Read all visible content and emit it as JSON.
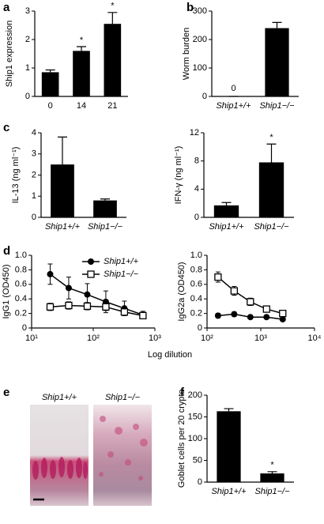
{
  "panel_letters": [
    "a",
    "b",
    "c",
    "d",
    "e",
    "f"
  ],
  "panel_e": {
    "labels": [
      "Ship1+/+",
      "Ship1−/−"
    ]
  },
  "chart_data": [
    {
      "type": "bar",
      "ylabel": "Ship1 expression",
      "categories": [
        "0",
        "14",
        "21"
      ],
      "values": [
        0.85,
        1.6,
        2.55
      ],
      "errors": [
        0.08,
        0.15,
        0.4
      ],
      "color": "#000000",
      "ylim": [
        0,
        3
      ],
      "yticks": [
        0,
        1,
        2,
        3
      ],
      "annotations": [
        {
          "category": "14",
          "text": "*"
        },
        {
          "category": "21",
          "text": "*"
        }
      ]
    },
    {
      "type": "bar",
      "ylabel": "Worm burden",
      "categories": [
        "Ship1+/+",
        "Ship1−/−"
      ],
      "values": [
        0,
        240
      ],
      "errors": [
        0,
        20
      ],
      "value_labels": [
        "0",
        null
      ],
      "color": "#000000",
      "ylim": [
        0,
        300
      ],
      "yticks": [
        0,
        100,
        200,
        300
      ]
    },
    {
      "type": "bar",
      "ylabel": "IL-13 (ng ml⁻¹)",
      "categories": [
        "Ship1+/+",
        "Ship1−/−"
      ],
      "values": [
        2.5,
        0.8
      ],
      "errors": [
        1.3,
        0.07
      ],
      "color": "#000000",
      "ylim": [
        0,
        4
      ],
      "yticks": [
        0,
        1,
        2,
        3,
        4
      ]
    },
    {
      "type": "bar",
      "ylabel": "IFN-γ (ng ml⁻¹)",
      "categories": [
        "Ship1+/+",
        "Ship1−/−"
      ],
      "values": [
        1.7,
        7.8
      ],
      "errors": [
        0.4,
        2.6
      ],
      "color": "#000000",
      "ylim": [
        0,
        12
      ],
      "yticks": [
        0,
        4,
        8,
        12
      ],
      "annotations": [
        {
          "category": "Ship1−/−",
          "text": "*"
        }
      ]
    },
    {
      "type": "line",
      "ylabel": "IgG1 (OD450)",
      "x": [
        20,
        40,
        80,
        160,
        320,
        640
      ],
      "log_x": true,
      "xlim": [
        10,
        1000
      ],
      "xticks": [
        {
          "value": 10,
          "label": "10¹"
        },
        {
          "value": 100,
          "label": "10²"
        },
        {
          "value": 1000,
          "label": "10³"
        }
      ],
      "ylim": [
        0,
        1
      ],
      "yticks": [
        0,
        0.2,
        0.4,
        0.6,
        0.8,
        {
          "value": 1,
          "label": "1.0"
        }
      ],
      "legend": "upper right",
      "series": [
        {
          "name": "Ship1+/+",
          "color": "#000000",
          "marker": "filled-circle",
          "values": [
            0.74,
            0.55,
            0.46,
            0.36,
            0.27,
            0.18
          ],
          "errors": [
            0.14,
            0.15,
            0.15,
            0.15,
            0.1,
            0.05
          ]
        },
        {
          "name": "Ship1−/−",
          "color": "#000000",
          "marker": "open-square",
          "values": [
            0.29,
            0.31,
            0.3,
            0.29,
            0.22,
            0.17
          ],
          "errors": [
            0.05,
            0.05,
            0.05,
            0.05,
            0.04,
            0.04
          ]
        }
      ]
    },
    {
      "type": "line",
      "ylabel": "IgG2a (OD450)",
      "xlabel": "Log dilution",
      "x": [
        160,
        320,
        640,
        1280,
        2560
      ],
      "log_x": true,
      "xlim": [
        100,
        10000
      ],
      "xticks": [
        {
          "value": 100,
          "label": "10²"
        },
        {
          "value": 1000,
          "label": "10³"
        },
        {
          "value": 10000,
          "label": "10⁴"
        }
      ],
      "ylim": [
        0,
        1
      ],
      "yticks": [
        0,
        0.2,
        0.4,
        0.6,
        0.8,
        {
          "value": 1,
          "label": "1.0"
        }
      ],
      "series": [
        {
          "name": "Ship1+/+",
          "color": "#000000",
          "marker": "filled-circle",
          "values": [
            0.17,
            0.19,
            0.15,
            0.15,
            0.12
          ],
          "errors": [
            0.03,
            0.03,
            0.02,
            0.02,
            0.01
          ]
        },
        {
          "name": "Ship1−/−",
          "color": "#000000",
          "marker": "open-square",
          "values": [
            0.7,
            0.51,
            0.36,
            0.26,
            0.2
          ],
          "errors": [
            0.07,
            0.06,
            0.05,
            0.03,
            0.02
          ]
        }
      ]
    },
    {
      "type": "bar",
      "ylabel": "Goblet cells per 20 crypts",
      "categories": [
        "Ship1+/+",
        "Ship1−/−"
      ],
      "values": [
        163,
        20
      ],
      "errors": [
        6,
        4
      ],
      "color": "#000000",
      "ylim": [
        0,
        200
      ],
      "yticks": [
        0,
        50,
        100,
        150,
        200
      ],
      "annotations": [
        {
          "category": "Ship1−/−",
          "text": "*"
        }
      ]
    }
  ]
}
